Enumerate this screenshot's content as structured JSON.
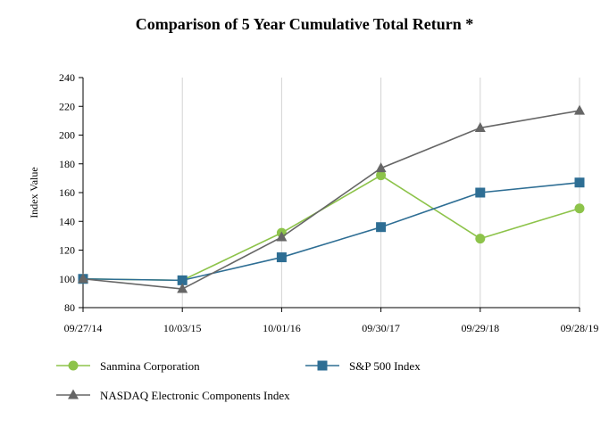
{
  "chart_data": {
    "type": "line",
    "title": "Comparison of 5 Year Cumulative Total Return *",
    "xlabel": "",
    "ylabel": "Index Value",
    "categories": [
      "09/27/14",
      "10/03/15",
      "10/01/16",
      "09/30/17",
      "09/29/18",
      "09/28/19"
    ],
    "ylim": [
      80,
      240
    ],
    "yticks": [
      80,
      100,
      120,
      140,
      160,
      180,
      200,
      220,
      240
    ],
    "grid": "vertical",
    "legend_position": "bottom",
    "series": [
      {
        "name": "Sanmina Corporation",
        "marker": "circle",
        "color": "#8dc34a",
        "values": [
          100,
          99,
          132,
          172,
          128,
          149
        ]
      },
      {
        "name": "S&P 500 Index",
        "marker": "square",
        "color": "#2e6e94",
        "values": [
          100,
          99,
          115,
          136,
          160,
          167
        ]
      },
      {
        "name": "NASDAQ Electronic Components Index",
        "marker": "triangle",
        "color": "#666666",
        "values": [
          100,
          93,
          129,
          177,
          205,
          217
        ]
      }
    ]
  }
}
